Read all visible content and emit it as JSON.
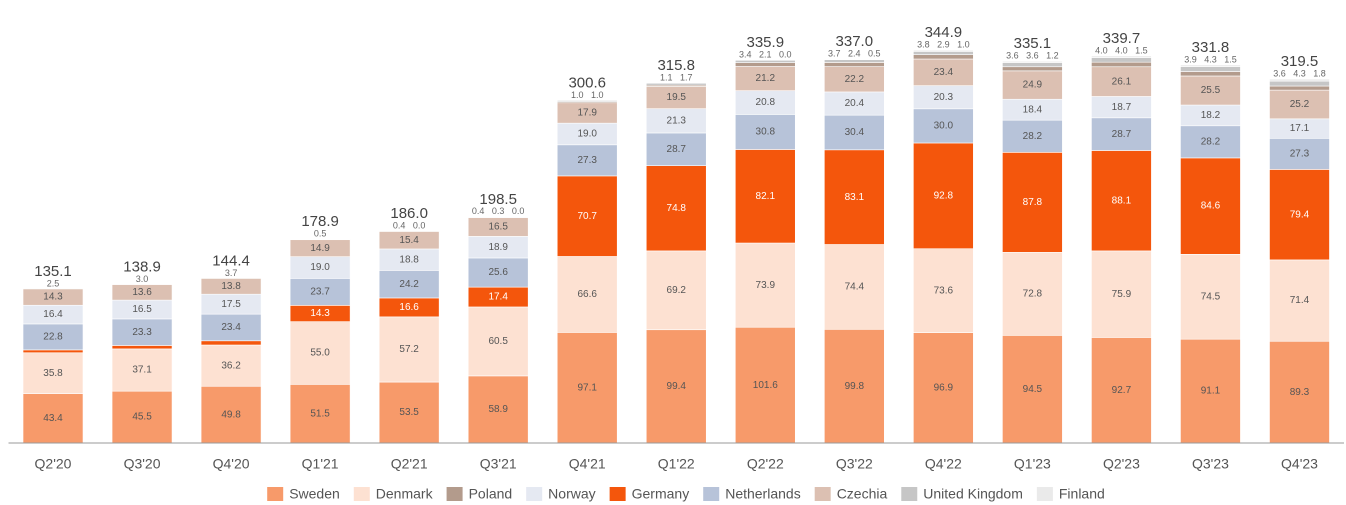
{
  "chart_data": {
    "type": "stacked_bar",
    "categories": [
      "Q2'20",
      "Q3'20",
      "Q4'20",
      "Q1'21",
      "Q2'21",
      "Q3'21",
      "Q4'21",
      "Q1'22",
      "Q2'22",
      "Q3'22",
      "Q4'22",
      "Q1'23",
      "Q2'23",
      "Q3'23",
      "Q4'23"
    ],
    "series": [
      {
        "name": "Sweden",
        "color": "#f79a6a",
        "values": [
          43.4,
          45.5,
          49.8,
          51.5,
          53.5,
          58.9,
          97.1,
          99.4,
          101.6,
          99.8,
          96.9,
          94.5,
          92.7,
          91.1,
          89.3
        ],
        "value_labels": [
          "43.4",
          "45.5",
          "49.8",
          "51.5",
          "53.5",
          "58.9",
          "97.1",
          "99.4",
          "101.6",
          "99.8",
          "96.9",
          "94.5",
          "92.7",
          "91.1",
          "89.3"
        ]
      },
      {
        "name": "Denmark",
        "color": "#fde1d2",
        "values": [
          35.8,
          37.1,
          36.2,
          55.0,
          57.2,
          60.5,
          66.6,
          69.2,
          73.9,
          74.4,
          73.6,
          72.8,
          75.9,
          74.5,
          71.4
        ],
        "value_labels": [
          "35.8",
          "37.1",
          "36.2",
          "55.0",
          "57.2",
          "60.5",
          "66.6",
          "69.2",
          "73.9",
          "74.4",
          "73.6",
          "72.8",
          "75.9",
          "74.5",
          "71.4"
        ]
      },
      {
        "name": "Poland",
        "color": "#b39b8c",
        "values": [
          null,
          null,
          null,
          null,
          null,
          0.4,
          1.0,
          1.1,
          3.4,
          3.7,
          3.8,
          3.6,
          4.0,
          3.9,
          3.6
        ],
        "value_labels": [
          null,
          null,
          null,
          null,
          null,
          "0.4",
          "1.0",
          "1.1",
          "3.4",
          "3.7",
          "3.8",
          "3.6",
          "4.0",
          "3.9",
          "3.6"
        ]
      },
      {
        "name": "Norway",
        "color": "#e5e9f2",
        "values": [
          16.4,
          16.5,
          17.5,
          19.0,
          18.8,
          18.9,
          19.0,
          21.3,
          20.8,
          20.4,
          20.3,
          18.4,
          18.7,
          18.2,
          17.1
        ],
        "value_labels": [
          "16.4",
          "16.5",
          "17.5",
          "19.0",
          "18.8",
          "18.9",
          "19.0",
          "21.3",
          "20.8",
          "20.4",
          "20.3",
          "18.4",
          "18.7",
          "18.2",
          "17.1"
        ]
      },
      {
        "name": "Germany",
        "color": "#f4560c",
        "values": [
          2.5,
          3.0,
          3.7,
          14.3,
          16.6,
          17.4,
          70.7,
          74.8,
          82.1,
          83.1,
          92.8,
          87.8,
          88.1,
          84.6,
          79.4
        ],
        "value_labels": [
          "2.5",
          "3.0",
          "3.7",
          "14.3",
          "16.6",
          "17.4",
          "70.7",
          "74.8",
          "82.1",
          "83.1",
          "92.8",
          "87.8",
          "88.1",
          "84.6",
          "79.4"
        ]
      },
      {
        "name": "Netherlands",
        "color": "#b7c3d9",
        "values": [
          22.8,
          23.3,
          23.4,
          23.7,
          24.2,
          25.6,
          27.3,
          28.7,
          30.8,
          30.4,
          30.0,
          28.2,
          28.7,
          28.2,
          27.3
        ],
        "value_labels": [
          "22.8",
          "23.3",
          "23.4",
          "23.7",
          "24.2",
          "25.6",
          "27.3",
          "28.7",
          "30.8",
          "30.4",
          "30.0",
          "28.2",
          "28.7",
          "28.2",
          "27.3"
        ]
      },
      {
        "name": "Czechia",
        "color": "#dcc0b2",
        "values": [
          14.3,
          13.6,
          13.8,
          14.9,
          15.4,
          16.5,
          17.9,
          19.5,
          21.2,
          22.2,
          23.4,
          24.9,
          26.1,
          25.5,
          25.2
        ],
        "value_labels": [
          "14.3",
          "13.6",
          "13.8",
          "14.9",
          "15.4",
          "16.5",
          "17.9",
          "19.5",
          "21.2",
          "22.2",
          "23.4",
          "24.9",
          "26.1",
          "25.5",
          "25.2"
        ]
      },
      {
        "name": "United Kingdom",
        "color": "#c6c6c6",
        "values": [
          null,
          null,
          null,
          0.5,
          0.4,
          0.3,
          1.0,
          1.7,
          2.1,
          2.4,
          2.9,
          3.6,
          4.0,
          4.3,
          4.3
        ],
        "value_labels": [
          null,
          null,
          null,
          "0.5",
          "0.4",
          "0.3",
          "1.0",
          "1.7",
          "2.1",
          "2.4",
          "2.9",
          "3.6",
          "4.0",
          "4.3",
          "4.3"
        ]
      },
      {
        "name": "Finland",
        "color": "#eaeaea",
        "values": [
          null,
          null,
          null,
          null,
          0.0,
          0.0,
          null,
          null,
          0.0,
          0.5,
          1.0,
          1.2,
          1.5,
          1.5,
          1.8
        ],
        "value_labels": [
          null,
          null,
          null,
          null,
          "0.0",
          "0.0",
          null,
          null,
          "0.0",
          "0.5",
          "1.0",
          "1.2",
          "1.5",
          "1.5",
          "1.8"
        ]
      }
    ],
    "totals": {
      "values": [
        135.1,
        138.9,
        144.4,
        178.9,
        186.0,
        198.5,
        300.6,
        315.8,
        335.9,
        337.0,
        344.9,
        335.1,
        339.7,
        331.8,
        319.5
      ],
      "value_labels": [
        "135.1",
        "138.9",
        "144.4",
        "178.9",
        "186.0",
        "198.5",
        "300.6",
        "315.8",
        "335.9",
        "337.0",
        "344.9",
        "335.1",
        "339.7",
        "331.8",
        "319.5"
      ]
    }
  }
}
